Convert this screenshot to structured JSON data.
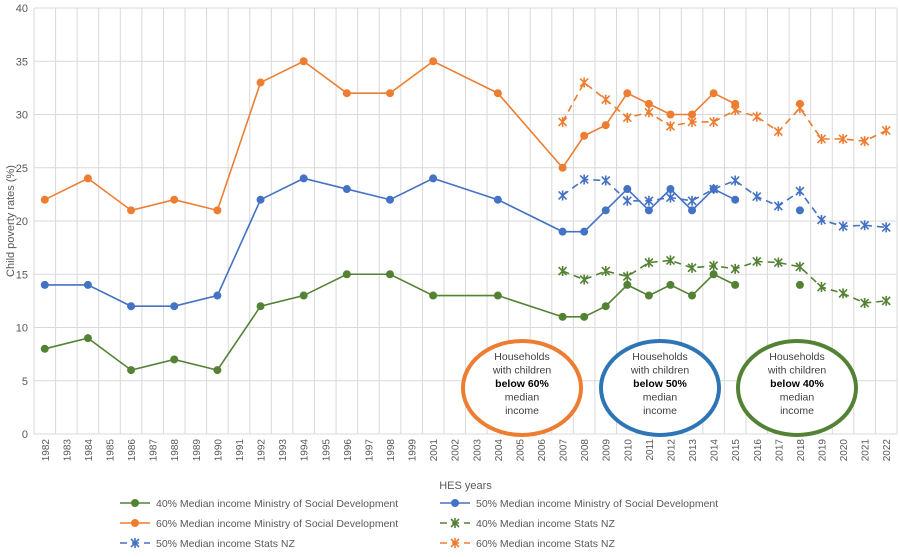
{
  "chart_data": {
    "type": "line",
    "xlabel": "HES years",
    "ylabel": "Child poverty rates (%)",
    "ylim": [
      0,
      40
    ],
    "yticks": [
      0,
      5,
      10,
      15,
      20,
      25,
      30,
      35,
      40
    ],
    "x": [
      1982,
      1983,
      1984,
      1985,
      1986,
      1987,
      1988,
      1989,
      1990,
      1991,
      1992,
      1993,
      1994,
      1995,
      1996,
      1997,
      1998,
      1999,
      2001,
      2002,
      2003,
      2004,
      2005,
      2006,
      2007,
      2008,
      2009,
      2010,
      2011,
      2012,
      2013,
      2014,
      2015,
      2016,
      2017,
      2018,
      2019,
      2020,
      2021,
      2022
    ],
    "grid": true,
    "legend_position": "bottom",
    "series": [
      {
        "name": "40% Median income Ministry of Social Development",
        "color": "#548235",
        "style": "solid-dot",
        "points": [
          [
            1982,
            8
          ],
          [
            1984,
            9
          ],
          [
            1986,
            6
          ],
          [
            1988,
            7
          ],
          [
            1990,
            6
          ],
          [
            1992,
            12
          ],
          [
            1994,
            13
          ],
          [
            1996,
            15
          ],
          [
            1998,
            15
          ],
          [
            2001,
            13
          ],
          [
            2004,
            13
          ],
          [
            2007,
            11
          ],
          [
            2008,
            11
          ],
          [
            2009,
            12
          ],
          [
            2010,
            14
          ],
          [
            2011,
            13
          ],
          [
            2012,
            14
          ],
          [
            2013,
            13
          ],
          [
            2014,
            15
          ],
          [
            2015,
            14
          ],
          null,
          [
            2018,
            14
          ]
        ]
      },
      {
        "name": "50% Median income Ministry of Social Development",
        "color": "#4472c4",
        "style": "solid-dot",
        "points": [
          [
            1982,
            14
          ],
          [
            1984,
            14
          ],
          [
            1986,
            12
          ],
          [
            1988,
            12
          ],
          [
            1990,
            13
          ],
          [
            1992,
            22
          ],
          [
            1994,
            24
          ],
          [
            1996,
            23
          ],
          [
            1998,
            22
          ],
          [
            2001,
            24
          ],
          [
            2004,
            22
          ],
          [
            2007,
            19
          ],
          [
            2008,
            19
          ],
          [
            2009,
            21
          ],
          [
            2010,
            23
          ],
          [
            2011,
            21
          ],
          [
            2012,
            23
          ],
          [
            2013,
            21
          ],
          [
            2014,
            23
          ],
          [
            2015,
            22
          ],
          null,
          [
            2018,
            21
          ]
        ]
      },
      {
        "name": "60% Median income Ministry of Social Development",
        "color": "#ed7d31",
        "style": "solid-dot",
        "points": [
          [
            1982,
            22
          ],
          [
            1984,
            24
          ],
          [
            1986,
            21
          ],
          [
            1988,
            22
          ],
          [
            1990,
            21
          ],
          [
            1992,
            33
          ],
          [
            1994,
            35
          ],
          [
            1996,
            32
          ],
          [
            1998,
            32
          ],
          [
            2001,
            35
          ],
          [
            2004,
            32
          ],
          [
            2007,
            25
          ],
          [
            2008,
            28
          ],
          [
            2009,
            29
          ],
          [
            2010,
            32
          ],
          [
            2011,
            31
          ],
          [
            2012,
            30
          ],
          [
            2013,
            30
          ],
          [
            2014,
            32
          ],
          [
            2015,
            31
          ],
          null,
          [
            2018,
            31
          ]
        ]
      },
      {
        "name": "40% Median income Stats NZ",
        "color": "#548235",
        "style": "dash-star",
        "points": [
          [
            2007,
            15.3
          ],
          [
            2008,
            14.5
          ],
          [
            2009,
            15.3
          ],
          [
            2010,
            14.8
          ],
          [
            2011,
            16.1
          ],
          [
            2012,
            16.3
          ],
          [
            2013,
            15.6
          ],
          [
            2014,
            15.8
          ],
          [
            2015,
            15.5
          ],
          [
            2016,
            16.2
          ],
          [
            2017,
            16.1
          ],
          [
            2018,
            15.7
          ],
          [
            2019,
            13.8
          ],
          [
            2020,
            13.2
          ],
          [
            2021,
            12.3
          ],
          [
            2022,
            12.5
          ]
        ]
      },
      {
        "name": "50% Median income Stats NZ",
        "color": "#4472c4",
        "style": "dash-star",
        "points": [
          [
            2007,
            22.4
          ],
          [
            2008,
            23.9
          ],
          [
            2009,
            23.8
          ],
          [
            2010,
            21.9
          ],
          [
            2011,
            21.9
          ],
          [
            2012,
            22.2
          ],
          [
            2013,
            21.9
          ],
          [
            2014,
            23.0
          ],
          [
            2015,
            23.8
          ],
          [
            2016,
            22.3
          ],
          [
            2017,
            21.4
          ],
          [
            2018,
            22.8
          ],
          [
            2019,
            20.1
          ],
          [
            2020,
            19.5
          ],
          [
            2021,
            19.6
          ],
          [
            2022,
            19.4
          ]
        ]
      },
      {
        "name": "60% Median income Stats NZ",
        "color": "#ed7d31",
        "style": "dash-star",
        "points": [
          [
            2007,
            29.3
          ],
          [
            2008,
            33
          ],
          [
            2009,
            31.4
          ],
          [
            2010,
            29.7
          ],
          [
            2011,
            30.2
          ],
          [
            2012,
            28.9
          ],
          [
            2013,
            29.3
          ],
          [
            2014,
            29.3
          ],
          [
            2015,
            30.4
          ],
          [
            2016,
            29.8
          ],
          [
            2017,
            28.4
          ],
          [
            2018,
            30.6
          ],
          [
            2019,
            27.7
          ],
          [
            2020,
            27.7
          ],
          [
            2021,
            27.5
          ],
          [
            2022,
            28.5
          ]
        ]
      }
    ],
    "annotations": [
      {
        "color": "#ed7d31",
        "lines": [
          "Households",
          "with children",
          "below 60%",
          "median",
          "income"
        ]
      },
      {
        "color": "#2e75b6",
        "lines": [
          "Households",
          "with children",
          "below 50%",
          "median",
          "income"
        ]
      },
      {
        "color": "#548235",
        "lines": [
          "Households",
          "with children",
          "below 40%",
          "median",
          "income"
        ]
      }
    ]
  }
}
